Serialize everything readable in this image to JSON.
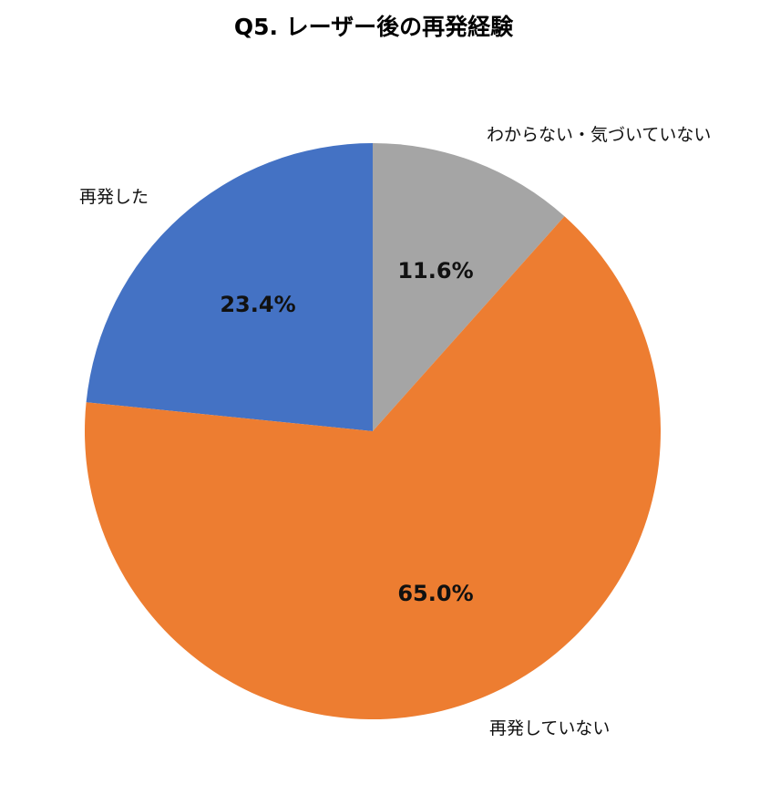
{
  "chart_data": {
    "type": "pie",
    "title": "Q5. レーザー後の再発経験",
    "categories": [
      "再発した",
      "わからない・気づいていない",
      "再発していない"
    ],
    "values": [
      23.4,
      11.6,
      65.0
    ],
    "value_labels": [
      "23.4%",
      "11.6%",
      "65.0%"
    ],
    "colors": [
      "#4472C4",
      "#A5A5A5",
      "#ED7D31"
    ],
    "unit": "%"
  }
}
